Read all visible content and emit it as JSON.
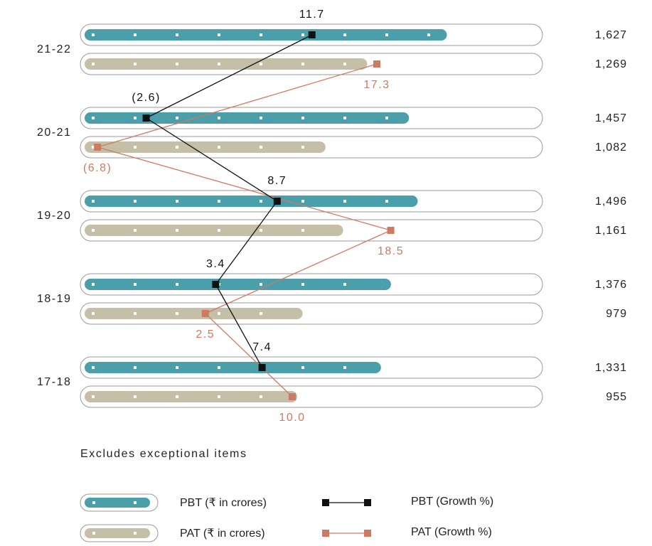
{
  "chart_data": {
    "type": "bar",
    "orientation": "horizontal",
    "categories": [
      "21-22",
      "20-21",
      "19-20",
      "18-19",
      "17-18"
    ],
    "series": [
      {
        "name": "PBT (₹ in crores)",
        "values": [
          1627,
          1457,
          1496,
          1376,
          1331
        ],
        "value_labels": [
          "1,627",
          "1,457",
          "1,496",
          "1,376",
          "1,331"
        ]
      },
      {
        "name": "PAT (₹ in crores)",
        "values": [
          1269,
          1082,
          1161,
          979,
          955
        ],
        "value_labels": [
          "1,269",
          "1,082",
          "1,161",
          "979",
          "955"
        ]
      }
    ],
    "growth_series": [
      {
        "name": "PBT (Growth %)",
        "values": [
          11.7,
          -2.6,
          8.7,
          3.4,
          7.4
        ],
        "labels": [
          "11.7",
          "(2.6)",
          "8.7",
          "3.4",
          "7.4"
        ]
      },
      {
        "name": "PAT (Growth %)",
        "values": [
          17.3,
          -6.8,
          18.5,
          2.5,
          10.0
        ],
        "labels": [
          "17.3",
          "(6.8)",
          "18.5",
          "2.5",
          "10.0"
        ]
      }
    ],
    "growth_range": [
      -10,
      20
    ],
    "bar_max": 1900,
    "legend_placement": "bottom",
    "note": "Excludes exceptional items"
  },
  "colors": {
    "pbt_bar": "#4a9faa",
    "pat_bar": "#c6bfa7",
    "pbt_line": "#111111",
    "pat_line": "#cd7a63",
    "track": "#9a9a9a",
    "text": "#222222"
  }
}
